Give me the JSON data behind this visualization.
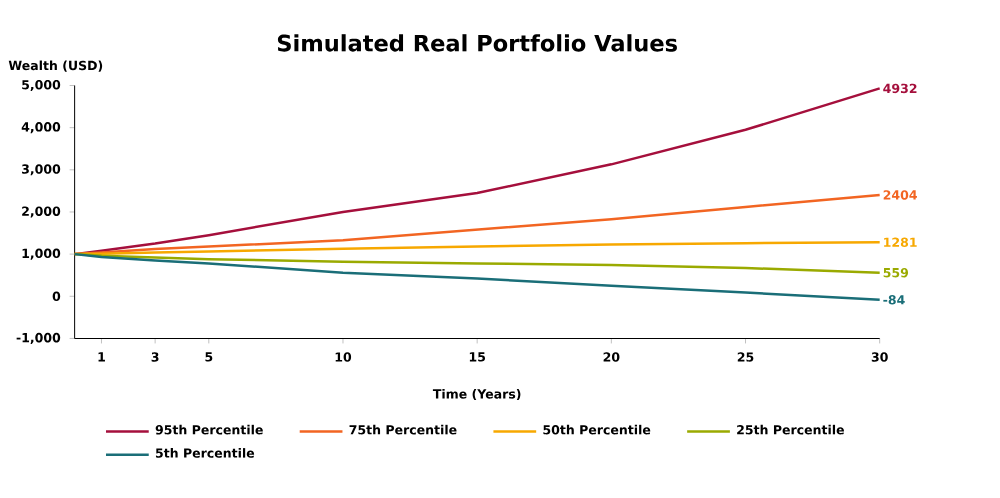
{
  "chart_data": {
    "type": "line",
    "title": "Simulated  Real Portfolio Values",
    "xlabel": "Time (Years)",
    "ylabel": "Wealth (USD)",
    "x": [
      0,
      1,
      3,
      5,
      10,
      15,
      20,
      25,
      30
    ],
    "series": [
      {
        "name": "95th Percentile",
        "color": "#a50f3c",
        "values": [
          1000,
          1080,
          1250,
          1450,
          2000,
          2450,
          3130,
          3950,
          4932
        ],
        "value_labels": [
          null,
          null,
          null,
          null,
          null,
          null,
          null,
          null,
          "4932"
        ]
      },
      {
        "name": "75th Percentile",
        "color": "#f26522",
        "values": [
          1000,
          1040,
          1120,
          1180,
          1330,
          1580,
          1830,
          2120,
          2404
        ],
        "value_labels": [
          null,
          null,
          null,
          null,
          null,
          null,
          null,
          null,
          "2404"
        ]
      },
      {
        "name": "50th Percentile",
        "color": "#f7a800",
        "values": [
          1000,
          1010,
          1040,
          1060,
          1130,
          1180,
          1230,
          1260,
          1281
        ],
        "value_labels": [
          null,
          null,
          null,
          null,
          null,
          null,
          null,
          null,
          "1281"
        ]
      },
      {
        "name": "25th Percentile",
        "color": "#9aaa00",
        "values": [
          1000,
          960,
          920,
          880,
          820,
          780,
          740,
          670,
          559
        ],
        "value_labels": [
          null,
          null,
          null,
          null,
          null,
          null,
          null,
          null,
          "559"
        ]
      },
      {
        "name": "5th Percentile",
        "color": "#1a6e78",
        "values": [
          1000,
          930,
          850,
          780,
          560,
          420,
          250,
          90,
          -84
        ],
        "value_labels": [
          null,
          null,
          null,
          null,
          null,
          null,
          null,
          null,
          "-84"
        ]
      }
    ],
    "xlim": [
      0,
      30
    ],
    "xticks": [
      1,
      3,
      5,
      10,
      15,
      20,
      25,
      30
    ],
    "ylim": [
      -1000,
      5000
    ],
    "yticks": [
      {
        "value": -1000,
        "label": "-1,000"
      },
      0,
      {
        "value": 1000,
        "label": "1,000"
      },
      {
        "value": 2000,
        "label": "2,000"
      },
      {
        "value": 3000,
        "label": "3,000"
      },
      {
        "value": 4000,
        "label": "4,000"
      },
      {
        "value": 5000,
        "label": "5,000"
      }
    ],
    "grid": false,
    "legend": "bottom",
    "marker": "none",
    "line_style": "solid"
  }
}
